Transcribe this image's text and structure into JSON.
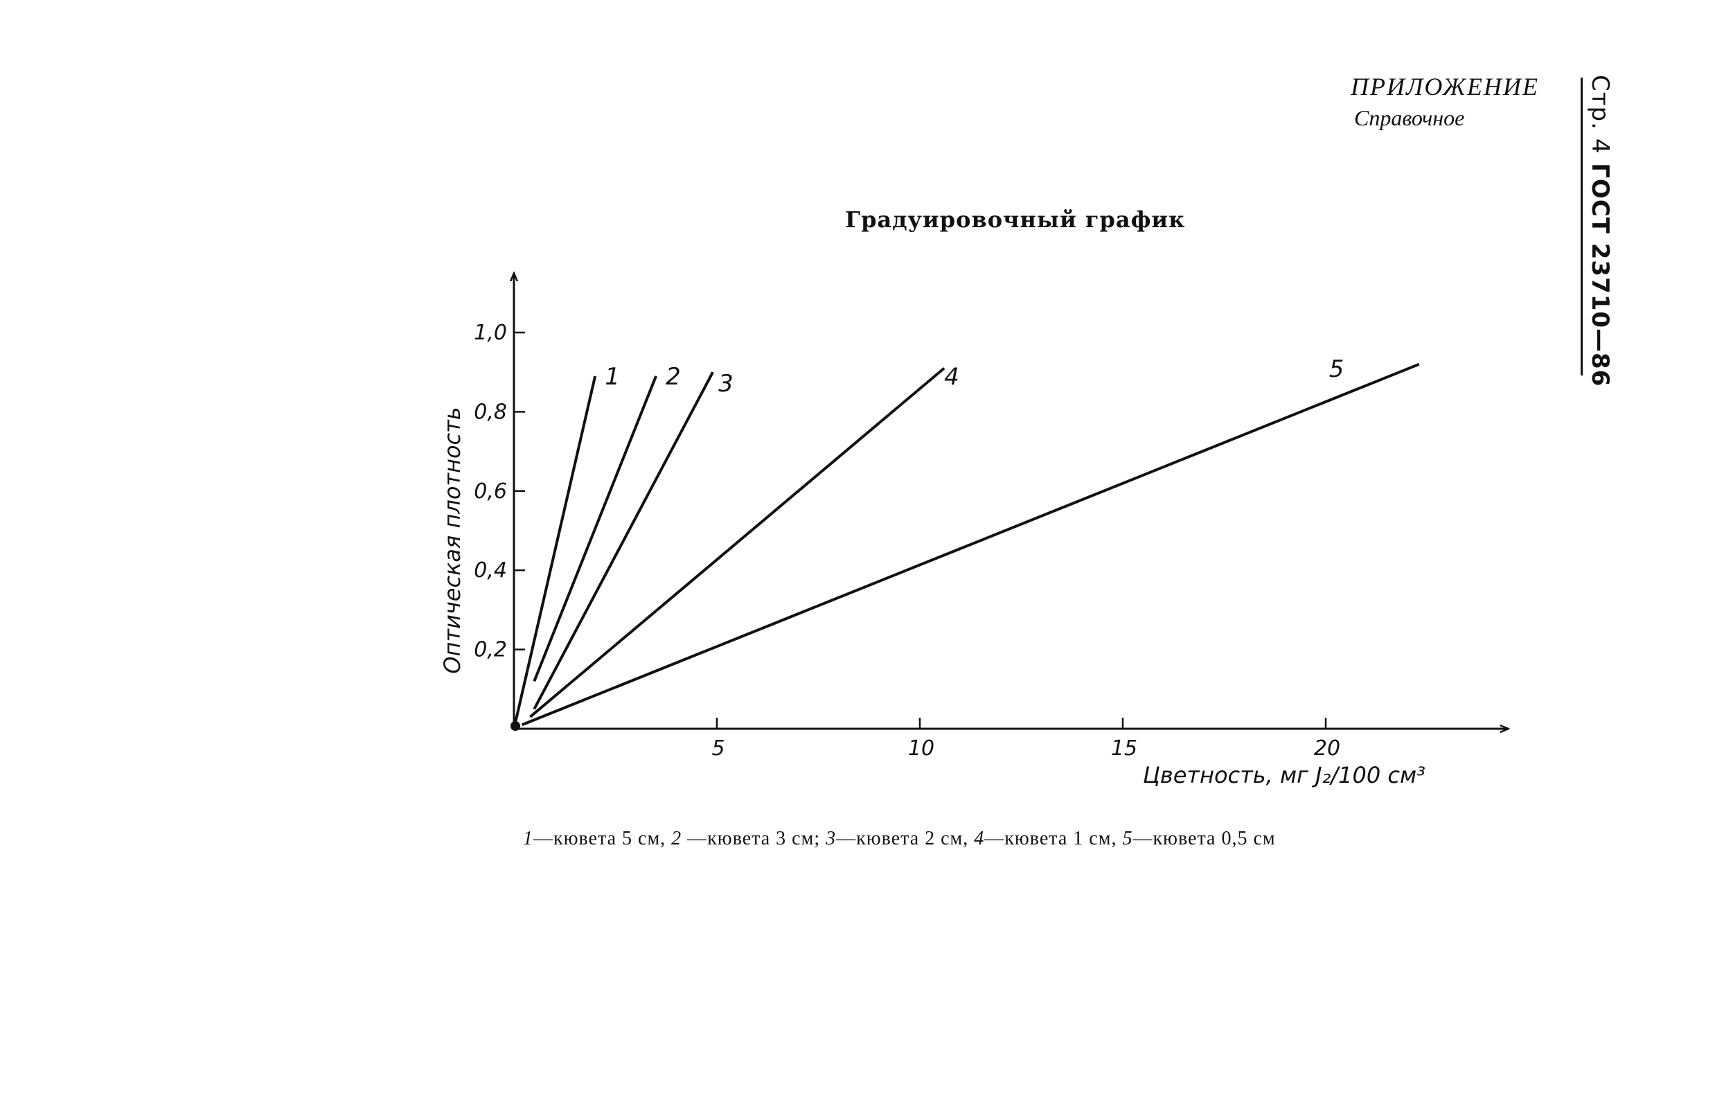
{
  "header": {
    "appendix": "ПРИЛОЖЕНИЕ",
    "appendix_note": "Справочное",
    "page_label": "Стр. 4",
    "standard": "ГОСТ 23710—86"
  },
  "chart_data": {
    "type": "line",
    "title": "Градуировочный график",
    "xlabel": "Цветность, мг J₂/100 см³",
    "ylabel": "Оптическая плотность",
    "xlim": [
      0,
      24.5
    ],
    "ylim": [
      0,
      1.15
    ],
    "x_ticks": [
      5,
      10,
      15,
      20
    ],
    "x_tick_labels": [
      "5",
      "10",
      "15",
      "20"
    ],
    "y_ticks": [
      0.2,
      0.4,
      0.6,
      0.8,
      1.0
    ],
    "y_tick_labels": [
      "0,2",
      "0,4",
      "0,6",
      "0,8",
      "1,0"
    ],
    "grid": false,
    "series": [
      {
        "name": "1",
        "x": [
          0,
          2.0
        ],
        "y": [
          0,
          0.89
        ]
      },
      {
        "name": "2",
        "x": [
          0.5,
          3.5
        ],
        "y": [
          0.12,
          0.89
        ]
      },
      {
        "name": "3",
        "x": [
          0.5,
          4.9
        ],
        "y": [
          0.05,
          0.9
        ]
      },
      {
        "name": "4",
        "x": [
          0.4,
          10.6
        ],
        "y": [
          0.03,
          0.91
        ]
      },
      {
        "name": "5",
        "x": [
          0.2,
          22.3
        ],
        "y": [
          0.01,
          0.92
        ]
      }
    ]
  },
  "caption": {
    "items": [
      {
        "num": "1",
        "text": "—кювета 5 см, "
      },
      {
        "num": "2",
        "text": " —кювета 3 см; "
      },
      {
        "num": "3",
        "text": "—кювета 2 см, "
      },
      {
        "num": "4",
        "text": "—кювета 1 см, "
      },
      {
        "num": "5",
        "text": "—кювета 0,5 см"
      }
    ]
  }
}
